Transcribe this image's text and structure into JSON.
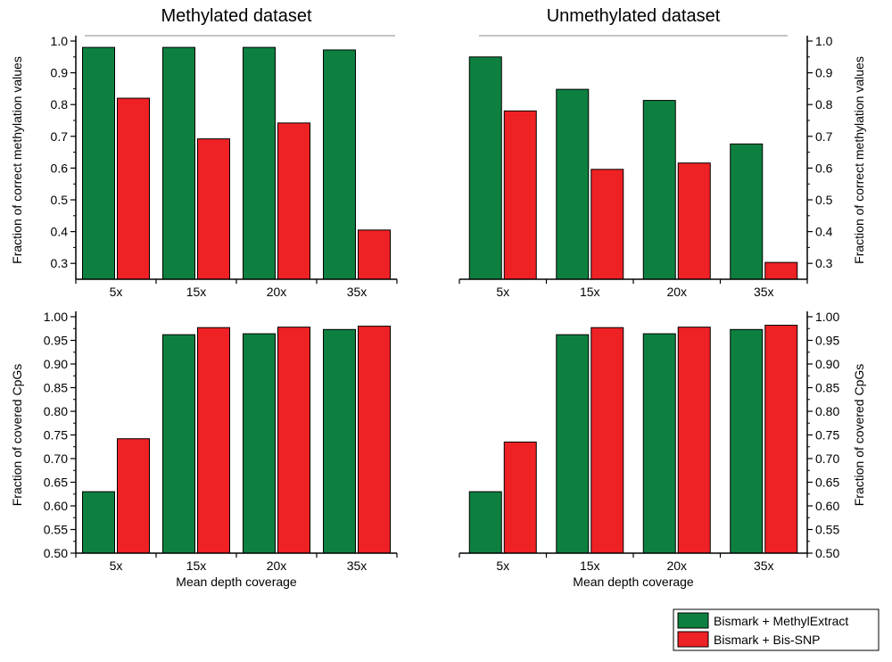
{
  "chart_data": [
    {
      "type": "bar",
      "title": "Methylated dataset",
      "categories": [
        "5x",
        "15x",
        "20x",
        "35x"
      ],
      "series": [
        {
          "name": "Bismark + MethylExtract",
          "values": [
            0.98,
            0.98,
            0.98,
            0.972
          ]
        },
        {
          "name": "Bismark + Bis-SNP",
          "values": [
            0.82,
            0.692,
            0.742,
            0.405
          ]
        }
      ],
      "ylabel": "Fraction of correct methylation values",
      "xlabel": "",
      "ylim": [
        0.25,
        1.0
      ],
      "yticks": [
        "0.3",
        "0.4",
        "0.5",
        "0.6",
        "0.7",
        "0.8",
        "0.9",
        "1.0"
      ],
      "yaxis_side": "left"
    },
    {
      "type": "bar",
      "title": "Unmethylated dataset",
      "categories": [
        "5x",
        "15x",
        "20x",
        "35x"
      ],
      "series": [
        {
          "name": "Bismark + MethylExtract",
          "values": [
            0.95,
            0.848,
            0.813,
            0.676
          ]
        },
        {
          "name": "Bismark + Bis-SNP",
          "values": [
            0.78,
            0.596,
            0.616,
            0.303
          ]
        }
      ],
      "ylabel": "Fraction of correct methylation values",
      "xlabel": "",
      "ylim": [
        0.25,
        1.0
      ],
      "yticks": [
        "0.3",
        "0.4",
        "0.5",
        "0.6",
        "0.7",
        "0.8",
        "0.9",
        "1.0"
      ],
      "yaxis_side": "right"
    },
    {
      "type": "bar",
      "title": "",
      "categories": [
        "5x",
        "15x",
        "20x",
        "35x"
      ],
      "series": [
        {
          "name": "Bismark + MethylExtract",
          "values": [
            0.63,
            0.962,
            0.964,
            0.973
          ]
        },
        {
          "name": "Bismark + Bis-SNP",
          "values": [
            0.742,
            0.977,
            0.978,
            0.98
          ]
        }
      ],
      "ylabel": "Fraction of covered CpGs",
      "xlabel": "Mean depth coverage",
      "ylim": [
        0.5,
        1.0
      ],
      "yticks": [
        "0.50",
        "0.55",
        "0.60",
        "0.65",
        "0.70",
        "0.75",
        "0.80",
        "0.85",
        "0.90",
        "0.95",
        "1.00"
      ],
      "yaxis_side": "left"
    },
    {
      "type": "bar",
      "title": "",
      "categories": [
        "5x",
        "15x",
        "20x",
        "35x"
      ],
      "series": [
        {
          "name": "Bismark + MethylExtract",
          "values": [
            0.63,
            0.962,
            0.964,
            0.973
          ]
        },
        {
          "name": "Bismark + Bis-SNP",
          "values": [
            0.735,
            0.977,
            0.978,
            0.982
          ]
        }
      ],
      "ylabel": "Fraction of covered CpGs",
      "xlabel": "Mean depth coverage",
      "ylim": [
        0.5,
        1.0
      ],
      "yticks": [
        "0.50",
        "0.55",
        "0.60",
        "0.65",
        "0.70",
        "0.75",
        "0.80",
        "0.85",
        "0.90",
        "0.95",
        "1.00"
      ],
      "yaxis_side": "right"
    }
  ],
  "legend": {
    "entries": [
      {
        "label": "Bismark + MethylExtract",
        "color": "#0d8040"
      },
      {
        "label": "Bismark + Bis-SNP",
        "color": "#ee2124"
      }
    ],
    "position": "bottom-right"
  },
  "colors": {
    "Bismark + MethylExtract": "#0d8040",
    "Bismark + Bis-SNP": "#ee2124"
  }
}
